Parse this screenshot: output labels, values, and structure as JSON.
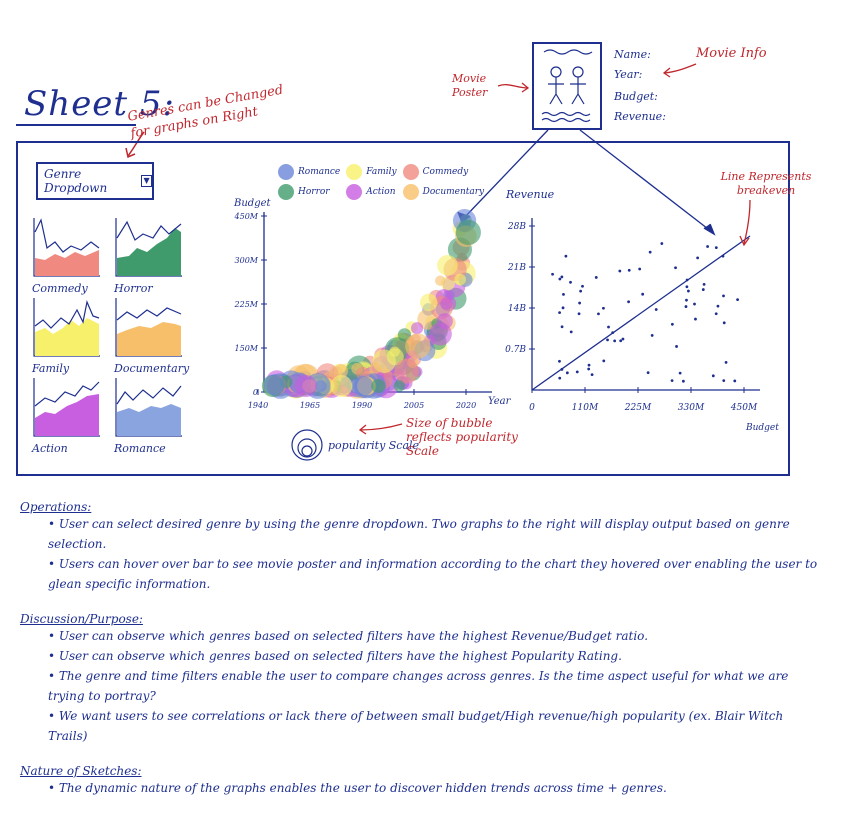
{
  "sheet": {
    "title": "Sheet 5:"
  },
  "annotations": {
    "genres_changed": "Genres can be Changed for graphs on Right",
    "movie_poster": "Movie Poster",
    "movie_info": "Movie Info",
    "line_breakeven": "Line Represents breakeven",
    "bubble_size": "Size of bubble reflects popularity Scale"
  },
  "dropdown": {
    "label": "Genre Dropdown",
    "arrow_icon": "chevron-down-icon"
  },
  "mini_charts": [
    {
      "label": "Commedy",
      "color": "#f08a80"
    },
    {
      "label": "Horror",
      "color": "#3f9b6c"
    },
    {
      "label": "Family",
      "color": "#f7f06a"
    },
    {
      "label": "Documentary",
      "color": "#f7bf6a"
    },
    {
      "label": "Action",
      "color": "#c85ee0"
    },
    {
      "label": "Romance",
      "color": "#8aa4e0"
    }
  ],
  "movie_info": {
    "fields": [
      "Name:",
      "Year:",
      "Budget:",
      "Revenue:"
    ]
  },
  "bubble_chart": {
    "ylabel": "Budget",
    "xlabel": "Year",
    "yticks": [
      "450M",
      "300M",
      "225M",
      "150M",
      "0"
    ],
    "xticks": [
      "1940",
      "1965",
      "1990",
      "2005",
      "2020"
    ],
    "legend": [
      {
        "name": "Romance",
        "color": "#6a86d8"
      },
      {
        "name": "Family",
        "color": "#f7f06a"
      },
      {
        "name": "Commedy",
        "color": "#f08a80"
      },
      {
        "name": "Horror",
        "color": "#3f9b6c"
      },
      {
        "name": "Action",
        "color": "#c85ee0"
      },
      {
        "name": "Documentary",
        "color": "#f7bf6a"
      }
    ],
    "popularity_label": "popularity Scale"
  },
  "scatter_chart": {
    "ylabel": "Revenue",
    "xlabel": "Budget",
    "yticks": [
      "28B",
      "21B",
      "14B",
      "0.7B",
      "0"
    ],
    "xticks": [
      "0",
      "110M",
      "225M",
      "330M",
      "450M"
    ]
  },
  "notes": {
    "operations_title": "Operations:",
    "operations": [
      "User can select desired genre by using the genre dropdown. Two graphs to the right will display output based on genre selection.",
      "Users can hover over bar to see movie poster and information according to the chart they hovered over enabling the user to glean specific information."
    ],
    "discussion_title": "Discussion/Purpose:",
    "discussion": [
      "User can observe which genres based on selected filters have the highest Revenue/Budget ratio.",
      "User can observe which genres based on selected filters have the highest Popularity Rating.",
      "The genre and time filters enable the user to compare changes across genres. Is the time aspect useful for what we are trying to portray?",
      "We want users to see correlations or lack there of between small budget/High revenue/high popularity (ex. Blair Witch Trails)"
    ],
    "nature_title": "Nature of Sketches:",
    "nature": [
      "The dynamic nature of the graphs enables the user to discover hidden trends across time + genres."
    ]
  }
}
